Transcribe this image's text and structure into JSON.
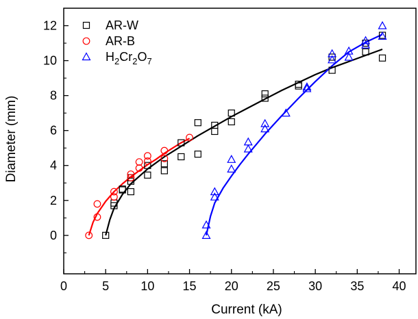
{
  "chart_data": {
    "type": "scatter",
    "title": "",
    "xlabel": "Current (kA)",
    "ylabel": "Diameter (mm)",
    "xlim": [
      0,
      42
    ],
    "ylim": [
      -2.2,
      13.0
    ],
    "xticks": [
      0,
      5,
      10,
      15,
      20,
      25,
      30,
      35,
      40
    ],
    "yticks": [
      0,
      2,
      4,
      6,
      8,
      10,
      12
    ],
    "grid": false,
    "legend_position": "top-left",
    "series": [
      {
        "name": "AR-W",
        "marker": "square",
        "color": "#000000",
        "points": [
          [
            5,
            0.0
          ],
          [
            6,
            1.7
          ],
          [
            6,
            1.85
          ],
          [
            7,
            2.6
          ],
          [
            7,
            2.65
          ],
          [
            8,
            2.5
          ],
          [
            8,
            3.1
          ],
          [
            8,
            3.3
          ],
          [
            10,
            3.45
          ],
          [
            10,
            4.0
          ],
          [
            12,
            3.7
          ],
          [
            12,
            4.1
          ],
          [
            14,
            4.5
          ],
          [
            14,
            5.3
          ],
          [
            16,
            4.65
          ],
          [
            16,
            6.45
          ],
          [
            18,
            5.95
          ],
          [
            18,
            6.3
          ],
          [
            20,
            6.5
          ],
          [
            20,
            7.0
          ],
          [
            24,
            7.85
          ],
          [
            24,
            8.1
          ],
          [
            28,
            8.55
          ],
          [
            28,
            8.65
          ],
          [
            32,
            9.45
          ],
          [
            32,
            10.2
          ],
          [
            36,
            10.5
          ],
          [
            36,
            11.0
          ],
          [
            38,
            10.15
          ],
          [
            38,
            11.45
          ]
        ],
        "fit": [
          [
            5,
            0.0
          ],
          [
            5.5,
            0.9
          ],
          [
            6,
            1.55
          ],
          [
            7,
            2.35
          ],
          [
            8,
            2.95
          ],
          [
            10,
            3.8
          ],
          [
            12,
            4.5
          ],
          [
            14,
            5.1
          ],
          [
            16,
            5.7
          ],
          [
            18,
            6.25
          ],
          [
            20,
            6.8
          ],
          [
            22,
            7.3
          ],
          [
            24,
            7.8
          ],
          [
            26,
            8.3
          ],
          [
            28,
            8.75
          ],
          [
            30,
            9.2
          ],
          [
            32,
            9.6
          ],
          [
            34,
            9.95
          ],
          [
            36,
            10.3
          ],
          [
            38,
            10.65
          ]
        ]
      },
      {
        "name": "AR-B",
        "marker": "circle",
        "color": "#ff0000",
        "points": [
          [
            3,
            0.0
          ],
          [
            4,
            1.05
          ],
          [
            4,
            1.8
          ],
          [
            6,
            2.2
          ],
          [
            6,
            2.5
          ],
          [
            8,
            3.3
          ],
          [
            8,
            3.5
          ],
          [
            9,
            3.85
          ],
          [
            9,
            4.2
          ],
          [
            10,
            4.25
          ],
          [
            10,
            4.55
          ],
          [
            12,
            4.4
          ],
          [
            12,
            4.85
          ],
          [
            15,
            5.6
          ]
        ],
        "fit": [
          [
            3,
            0.0
          ],
          [
            3.5,
            0.75
          ],
          [
            4,
            1.25
          ],
          [
            5,
            1.95
          ],
          [
            6,
            2.5
          ],
          [
            7,
            2.95
          ],
          [
            8,
            3.35
          ],
          [
            9,
            3.7
          ],
          [
            10,
            4.05
          ],
          [
            11,
            4.35
          ],
          [
            12,
            4.7
          ],
          [
            13,
            5.0
          ],
          [
            14,
            5.3
          ],
          [
            15,
            5.55
          ]
        ]
      },
      {
        "name": "H2Cr2O7",
        "name_parts": {
          "base": "H",
          "s1": "2",
          "mid1": "Cr",
          "s2": "2",
          "mid2": "O",
          "s3": "7"
        },
        "marker": "triangle",
        "color": "#0000ff",
        "points": [
          [
            17,
            0.0
          ],
          [
            17,
            0.6
          ],
          [
            18,
            2.2
          ],
          [
            18,
            2.5
          ],
          [
            20,
            3.8
          ],
          [
            20,
            4.35
          ],
          [
            22,
            4.95
          ],
          [
            22,
            5.35
          ],
          [
            24,
            6.1
          ],
          [
            24,
            6.4
          ],
          [
            26.5,
            7.0
          ],
          [
            29,
            8.4
          ],
          [
            29,
            8.5
          ],
          [
            32,
            10.05
          ],
          [
            32,
            10.4
          ],
          [
            34,
            10.2
          ],
          [
            34,
            10.55
          ],
          [
            36,
            10.9
          ],
          [
            36,
            11.15
          ],
          [
            38,
            11.4
          ],
          [
            38,
            12.0
          ]
        ],
        "fit": [
          [
            17,
            0.0
          ],
          [
            17.5,
            1.1
          ],
          [
            18,
            1.85
          ],
          [
            19,
            2.7
          ],
          [
            20,
            3.4
          ],
          [
            21,
            4.05
          ],
          [
            22,
            4.65
          ],
          [
            24,
            5.8
          ],
          [
            26,
            6.85
          ],
          [
            28,
            7.85
          ],
          [
            30,
            8.8
          ],
          [
            32,
            9.7
          ],
          [
            34,
            10.5
          ],
          [
            36,
            11.05
          ],
          [
            38,
            11.5
          ]
        ]
      }
    ]
  }
}
